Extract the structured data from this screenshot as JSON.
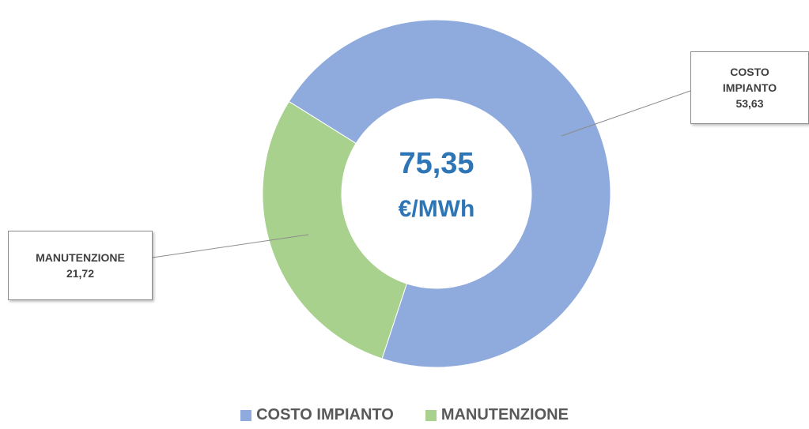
{
  "chart_data": {
    "type": "donut",
    "categories": [
      "COSTO IMPIANTO",
      "MANUTENZIONE"
    ],
    "values": [
      53.63,
      21.72
    ],
    "value_labels": [
      "53,63",
      "21,72"
    ],
    "colors": [
      "#8faadc",
      "#a9d18e"
    ],
    "center_label": "75,35",
    "center_unit": "€/MWh",
    "legend": "bottom"
  }
}
